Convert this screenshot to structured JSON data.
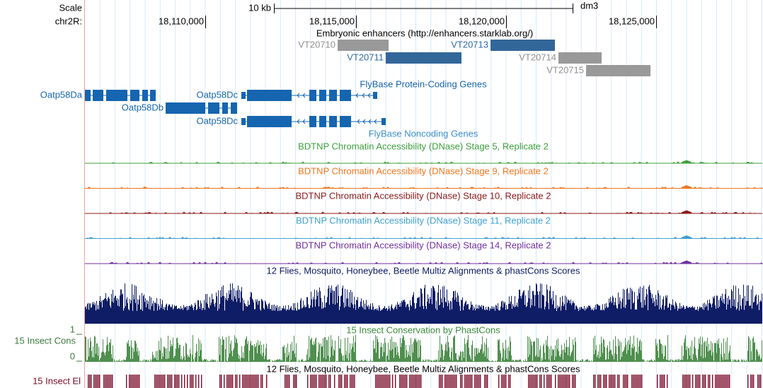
{
  "header": {
    "scale_label": "Scale",
    "scale_bar_label": "10 kb",
    "assembly": "dm3",
    "chrom_label": "chr2R:",
    "positions": [
      "18,110,000",
      "18,115,000",
      "18,120,000",
      "18,125,000"
    ]
  },
  "enhancers": {
    "title": "Embryonic enhancers (http://enhancers.starklab.org/)",
    "items": [
      "VT20710",
      "VT20711",
      "VT20713",
      "VT20714",
      "VT20715"
    ]
  },
  "genes": {
    "title": "FlyBase Protein-Coding Genes",
    "items": [
      "Oatp58Da",
      "Oatp58Db",
      "Oatp58Dc",
      "Oatp58Dc"
    ],
    "noncoding_title": "FlyBase Noncoding Genes"
  },
  "dnase_tracks": [
    "BDTNP Chromatin Accessibility (DNase) Stage 5, Replicate 2",
    "BDTNP Chromatin Accessibility (DNase) Stage 9, Replicate 2",
    "BDTNP Chromatin Accessibility (DNase) Stage 10, Replicate 2",
    "BDTNP Chromatin Accessibility (DNase) Stage 11, Replicate 2",
    "BDTNP Chromatin Accessibility (DNase) Stage 14, Replicate 2"
  ],
  "multiz_title": "12 Flies, Mosquito, Honeybee, Beetle Multiz Alignments & phastCons Scores",
  "cons": {
    "label": "15 Insect Cons",
    "title": "15 Insect Conservation by PhastCons",
    "max": "1",
    "min": "0"
  },
  "elements": {
    "title": "12 Flies, Mosquito, Honeybee, Beetle Multiz Alignments & phastCons Scores",
    "label": "15 Insect El"
  }
}
